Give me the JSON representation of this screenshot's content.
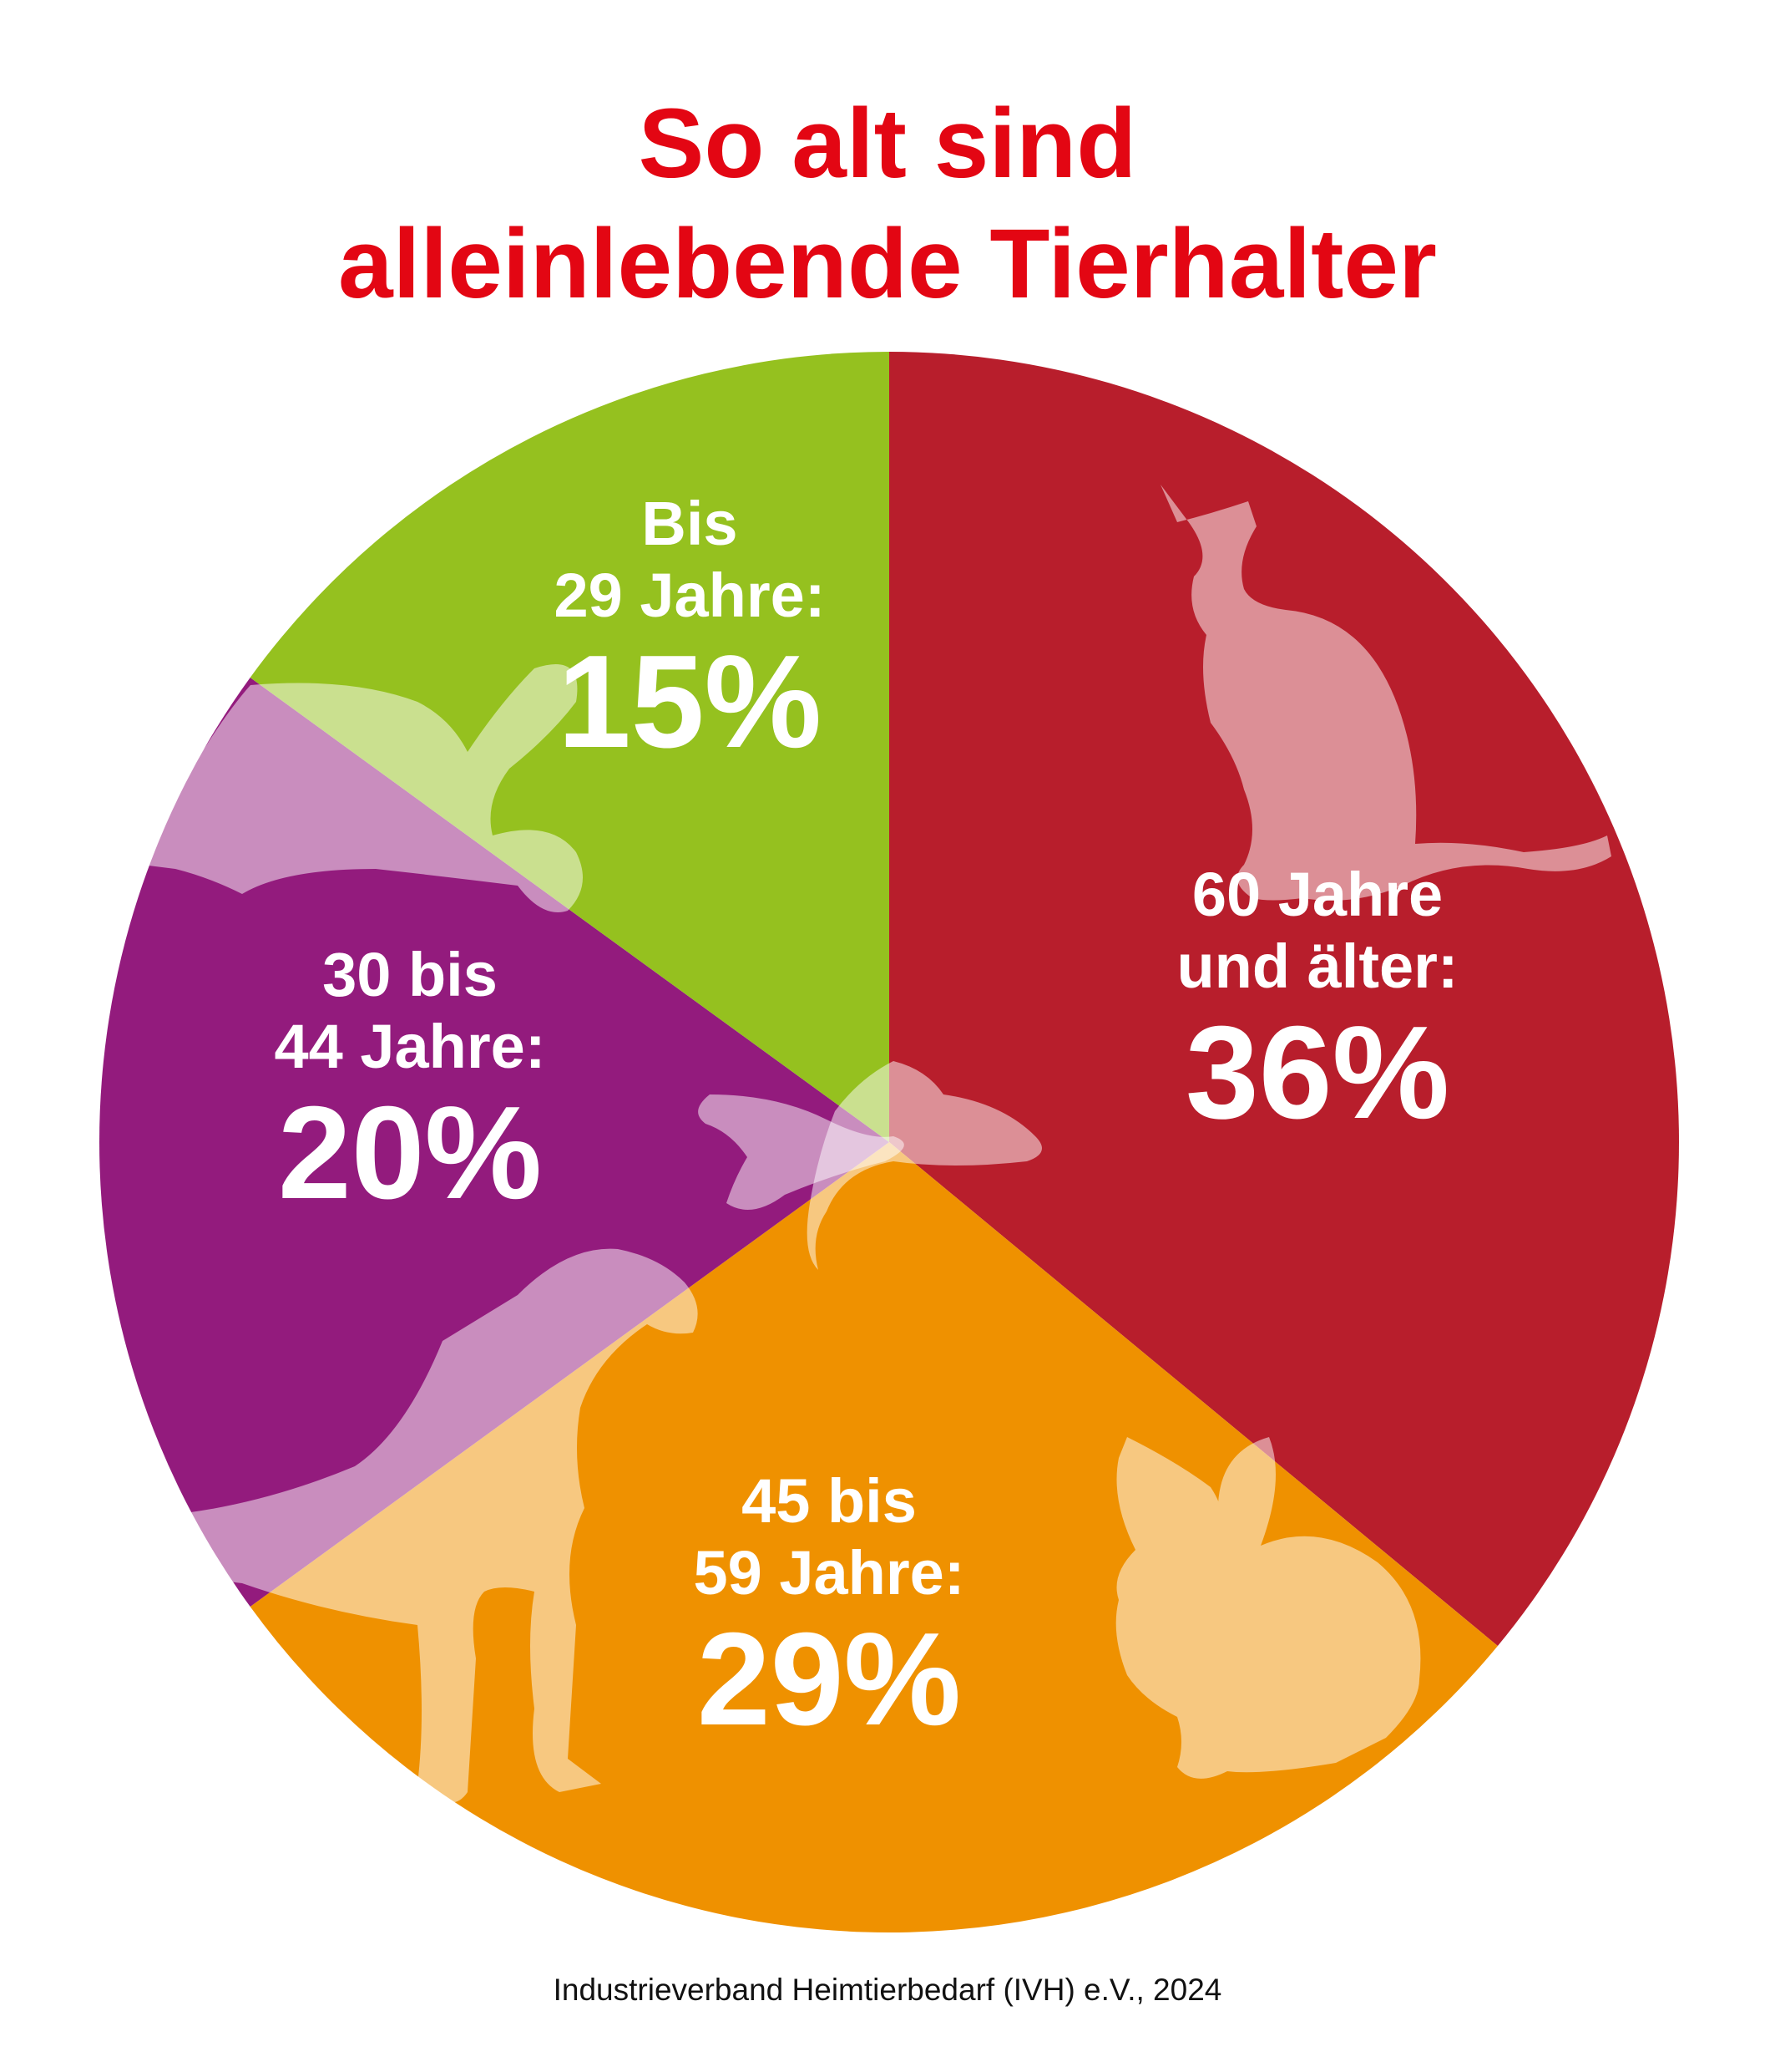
{
  "chart_data": {
    "type": "pie",
    "title": [
      "So alt sind",
      "alleinlebende Tierhalter"
    ],
    "source": "Industrieverband Heimtierbedarf (IVH) e.V., 2024",
    "start": "12 o'clock, clockwise",
    "slices": [
      {
        "label_lines": [
          "60 Jahre",
          "und älter:"
        ],
        "value": 36,
        "value_label": "36%",
        "color": "#b81e2c"
      },
      {
        "label_lines": [
          "45 bis",
          "59 Jahre:"
        ],
        "value": 29,
        "value_label": "29%",
        "color": "#ef9100"
      },
      {
        "label_lines": [
          "30 bis",
          "44 Jahre:"
        ],
        "value": 20,
        "value_label": "20%",
        "color": "#931b7d"
      },
      {
        "label_lines": [
          "Bis",
          "29 Jahre:"
        ],
        "value": 15,
        "value_label": "15%",
        "color": "#95c11f"
      }
    ],
    "decorations": [
      "cat-icon",
      "rabbit-icon",
      "dog-icon",
      "turtle-icon",
      "fish-icon",
      "bird-icon"
    ]
  }
}
